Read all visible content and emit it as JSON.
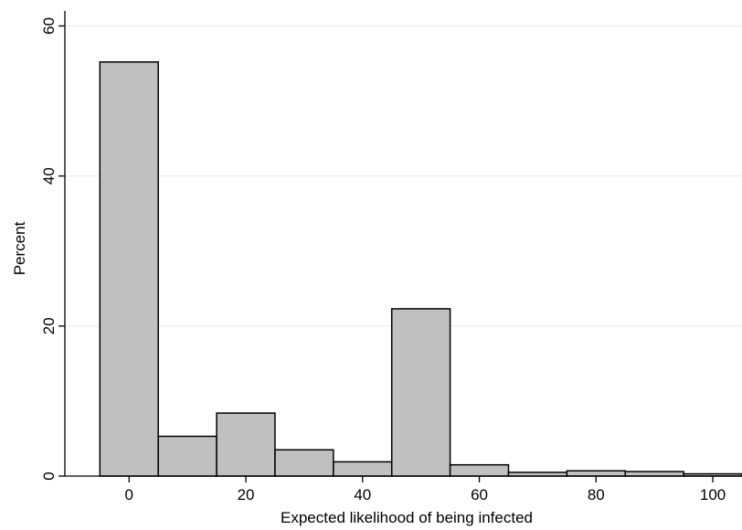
{
  "chart_data": {
    "type": "bar",
    "title": "",
    "xlabel": "Expected likelihood of being infected",
    "ylabel": "Percent",
    "bin_width": 10,
    "bin_centers": [
      0,
      10,
      20,
      30,
      40,
      50,
      60,
      70,
      80,
      90,
      100
    ],
    "values": [
      55.2,
      5.3,
      8.4,
      3.5,
      1.9,
      22.3,
      1.5,
      0.5,
      0.7,
      0.6,
      0.3
    ],
    "xlim": [
      -11,
      105
    ],
    "ylim": [
      0,
      62
    ],
    "x_ticks": [
      0,
      20,
      40,
      60,
      80,
      100
    ],
    "y_ticks": [
      0,
      20,
      40,
      60
    ],
    "grid": "horizontal",
    "colors": {
      "bar_fill": "#c0c0c0",
      "bar_stroke": "#000000",
      "grid": "#eaeaea"
    }
  }
}
